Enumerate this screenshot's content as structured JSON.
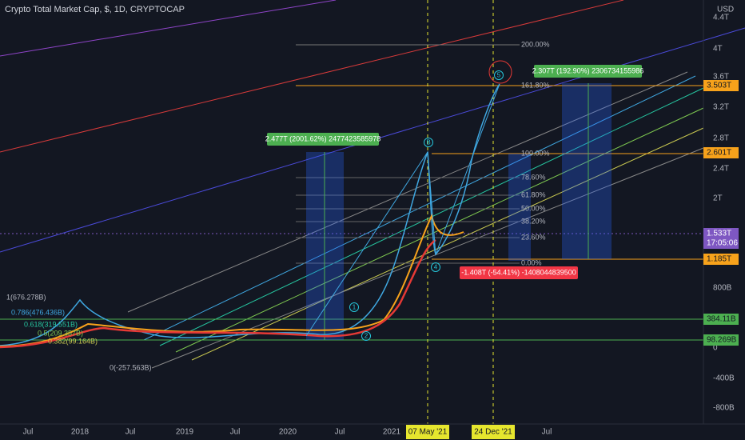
{
  "header": {
    "title": "Crypto Total Market Cap, $, 1D, CRYPTOCAP"
  },
  "y_axis": {
    "unit": "USD",
    "labels": [
      "4.4T",
      "4T",
      "3.6T",
      "3.2T",
      "2.8T",
      "2.4T",
      "2T",
      "800B",
      "0",
      "-400B",
      "-800B"
    ]
  },
  "x_axis": {
    "labels": [
      "Jul",
      "2018",
      "Jul",
      "2019",
      "Jul",
      "2020",
      "Jul",
      "2021",
      "Jul"
    ],
    "highlighted": [
      "07 May '21",
      "24 Dec '21"
    ]
  },
  "price_tags": [
    {
      "label": "3.503T"
    },
    {
      "label": "2.601T"
    },
    {
      "label": "1.533T",
      "timer": "17:05:06"
    },
    {
      "label": "1.185T"
    },
    {
      "label": "384.11B"
    },
    {
      "label": "98.269B"
    }
  ],
  "fib_right": [
    "200.00%",
    "161.80%",
    "100.00%",
    "78.60%",
    "61.80%",
    "50.00%",
    "38.20%",
    "23.60%",
    "0.00%"
  ],
  "fib_left": [
    "1(676.278B)",
    "0.786(476.436B)",
    "0.618(319.551B)",
    "0.5(209.357B)",
    "0.382(99.164B)",
    "0(-257.563B)"
  ],
  "measures": [
    "2.477T (2001.62%) 2477423585978",
    "2.307T (192.90%) 2306734155986",
    "-1.408T (-54.41%) -1408044839500"
  ],
  "waves": [
    "1",
    "2",
    "4",
    "5",
    "B"
  ]
}
